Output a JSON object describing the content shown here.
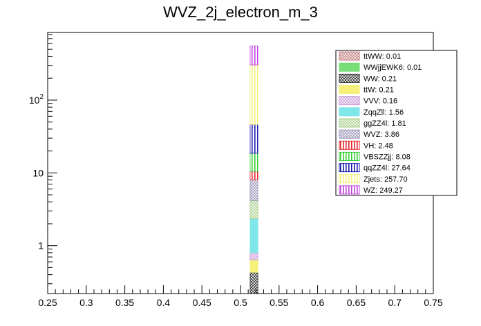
{
  "chart_data": {
    "type": "bar",
    "title": "WVZ_2j_electron_m_3",
    "xlabel": "",
    "ylabel": "",
    "xlim": [
      0.25,
      0.75
    ],
    "ylim": [
      0.22,
      850
    ],
    "y_scale": "log",
    "grid": false,
    "legend_position": "top-right",
    "x_ticks": [
      "0.25",
      "0.3",
      "0.35",
      "0.4",
      "0.45",
      "0.5",
      "0.55",
      "0.6",
      "0.65",
      "0.7",
      "0.75"
    ],
    "x_tick_values": [
      0.25,
      0.3,
      0.35,
      0.4,
      0.45,
      0.5,
      0.55,
      0.6,
      0.65,
      0.7,
      0.75
    ],
    "y_ticks": [
      {
        "value": 1,
        "label": "1",
        "sup": ""
      },
      {
        "value": 10,
        "label": "10",
        "sup": ""
      },
      {
        "value": 100,
        "label": "10",
        "sup": "2"
      }
    ],
    "bin": [
      0.5125,
      0.5225
    ],
    "stack_bottom": 0.2,
    "series": [
      {
        "name": "ttWW: 0.01",
        "value": 0.01,
        "color": "#c07878",
        "pattern": "cross"
      },
      {
        "name": "WWjjEWK6: 0.01",
        "value": 0.01,
        "color": "#77dd77",
        "pattern": "solid"
      },
      {
        "name": "WW: 0.21",
        "value": 0.21,
        "color": "#2b2b2b",
        "pattern": "cross"
      },
      {
        "name": "ttW: 0.21",
        "value": 0.21,
        "color": "#f5f07a",
        "pattern": "solid"
      },
      {
        "name": "VVV: 0.16",
        "value": 0.16,
        "color": "#c89ad8",
        "pattern": "cross"
      },
      {
        "name": "ZqqZll: 1.56",
        "value": 1.56,
        "color": "#7fe6ea",
        "pattern": "solid"
      },
      {
        "name": "ggZZ4l: 1.81",
        "value": 1.81,
        "color": "#a8cf8a",
        "pattern": "cross"
      },
      {
        "name": "WVZ: 3.86",
        "value": 3.86,
        "color": "#9d94b6",
        "pattern": "cross"
      },
      {
        "name": "VH: 2.48",
        "value": 2.48,
        "color": "#e8242a",
        "pattern": "vlines"
      },
      {
        "name": "VBSZZjj: 8.08",
        "value": 8.08,
        "color": "#33cc33",
        "pattern": "vlines"
      },
      {
        "name": "qqZZ4l: 27.64",
        "value": 27.64,
        "color": "#1a1aaa",
        "pattern": "vlines"
      },
      {
        "name": "Zjets: 257.70",
        "value": 257.7,
        "color": "#f5f07a",
        "pattern": "vlines"
      },
      {
        "name": "WZ: 249.27",
        "value": 249.27,
        "color": "#c040e0",
        "pattern": "vlines"
      }
    ]
  }
}
